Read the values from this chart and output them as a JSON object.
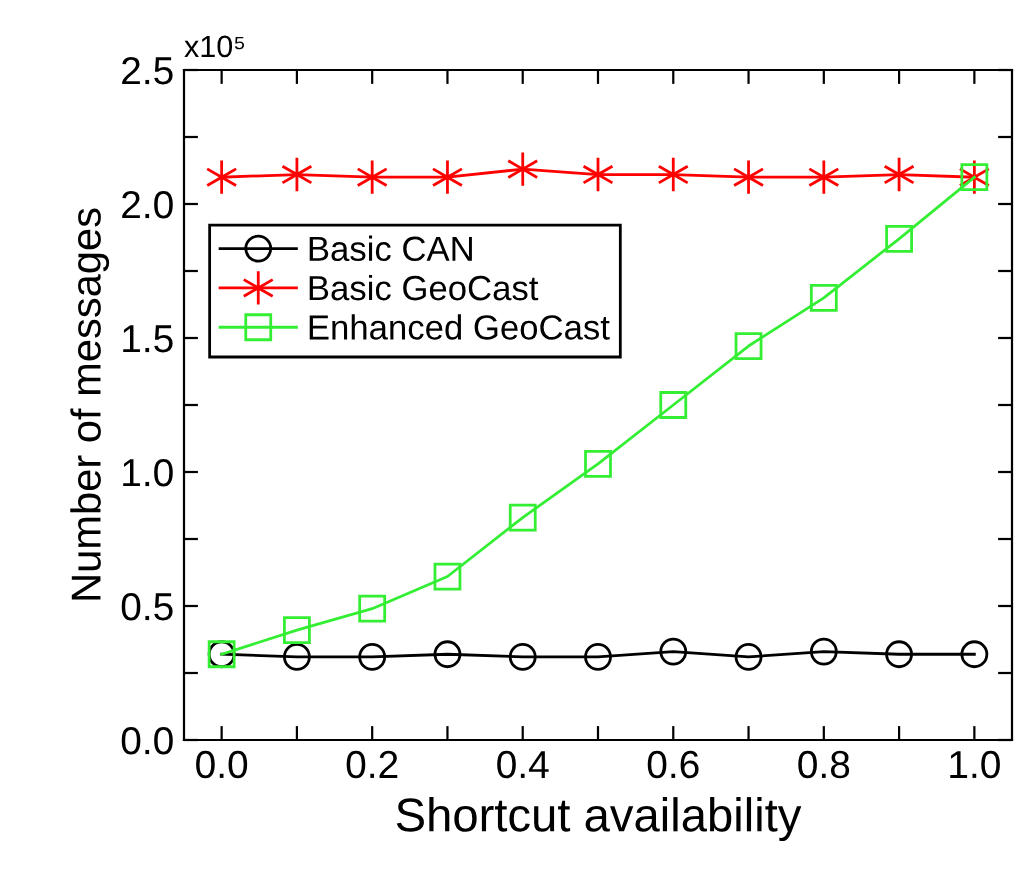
{
  "chart_data": {
    "type": "line",
    "xlabel": "Shortcut availability",
    "ylabel": "Number of messages",
    "annotations": [
      "x10⁵"
    ],
    "x": [
      0.0,
      0.1,
      0.2,
      0.3,
      0.4,
      0.5,
      0.6,
      0.7,
      0.8,
      0.9,
      1.0
    ],
    "series": [
      {
        "name": "Basic CAN",
        "color": "#000000",
        "marker": "circle",
        "values": [
          0.32,
          0.31,
          0.31,
          0.32,
          0.31,
          0.31,
          0.33,
          0.31,
          0.33,
          0.32,
          0.32
        ]
      },
      {
        "name": "Basic GeoCast",
        "color": "#ff0000",
        "marker": "cross",
        "values": [
          2.1,
          2.11,
          2.1,
          2.1,
          2.13,
          2.11,
          2.11,
          2.1,
          2.1,
          2.11,
          2.1
        ]
      },
      {
        "name": "Enhanced GeoCast",
        "color": "#33ee33",
        "marker": "square",
        "values": [
          0.32,
          0.41,
          0.49,
          0.61,
          0.83,
          1.03,
          1.25,
          1.47,
          1.65,
          1.87,
          2.1
        ]
      }
    ],
    "xlim": [
      -0.05,
      1.05
    ],
    "xticks": [
      {
        "value": 0.0,
        "label": "0.0"
      },
      {
        "value": 0.1,
        "label": null
      },
      {
        "value": 0.2,
        "label": "0.2"
      },
      {
        "value": 0.3,
        "label": null
      },
      {
        "value": 0.4,
        "label": "0.4"
      },
      {
        "value": 0.5,
        "label": null
      },
      {
        "value": 0.6,
        "label": "0.6"
      },
      {
        "value": 0.7,
        "label": null
      },
      {
        "value": 0.8,
        "label": "0.8"
      },
      {
        "value": 0.9,
        "label": null
      },
      {
        "value": 1.0,
        "label": "1.0"
      }
    ],
    "ylim": [
      0,
      2.5
    ],
    "yticks": [
      {
        "value": 0,
        "label": "0.0"
      },
      {
        "value": 0.25,
        "label": null
      },
      {
        "value": 0.5,
        "label": "0.5"
      },
      {
        "value": 0.75,
        "label": null
      },
      {
        "value": 1.0,
        "label": "1.0"
      },
      {
        "value": 1.25,
        "label": null
      },
      {
        "value": 1.5,
        "label": "1.5"
      },
      {
        "value": 1.75,
        "label": null
      },
      {
        "value": 2.0,
        "label": "2.0"
      },
      {
        "value": 2.25,
        "label": null
      },
      {
        "value": 2.5,
        "label": "2.5"
      }
    ],
    "grid": false,
    "legend": "left",
    "line_style": "solid"
  }
}
